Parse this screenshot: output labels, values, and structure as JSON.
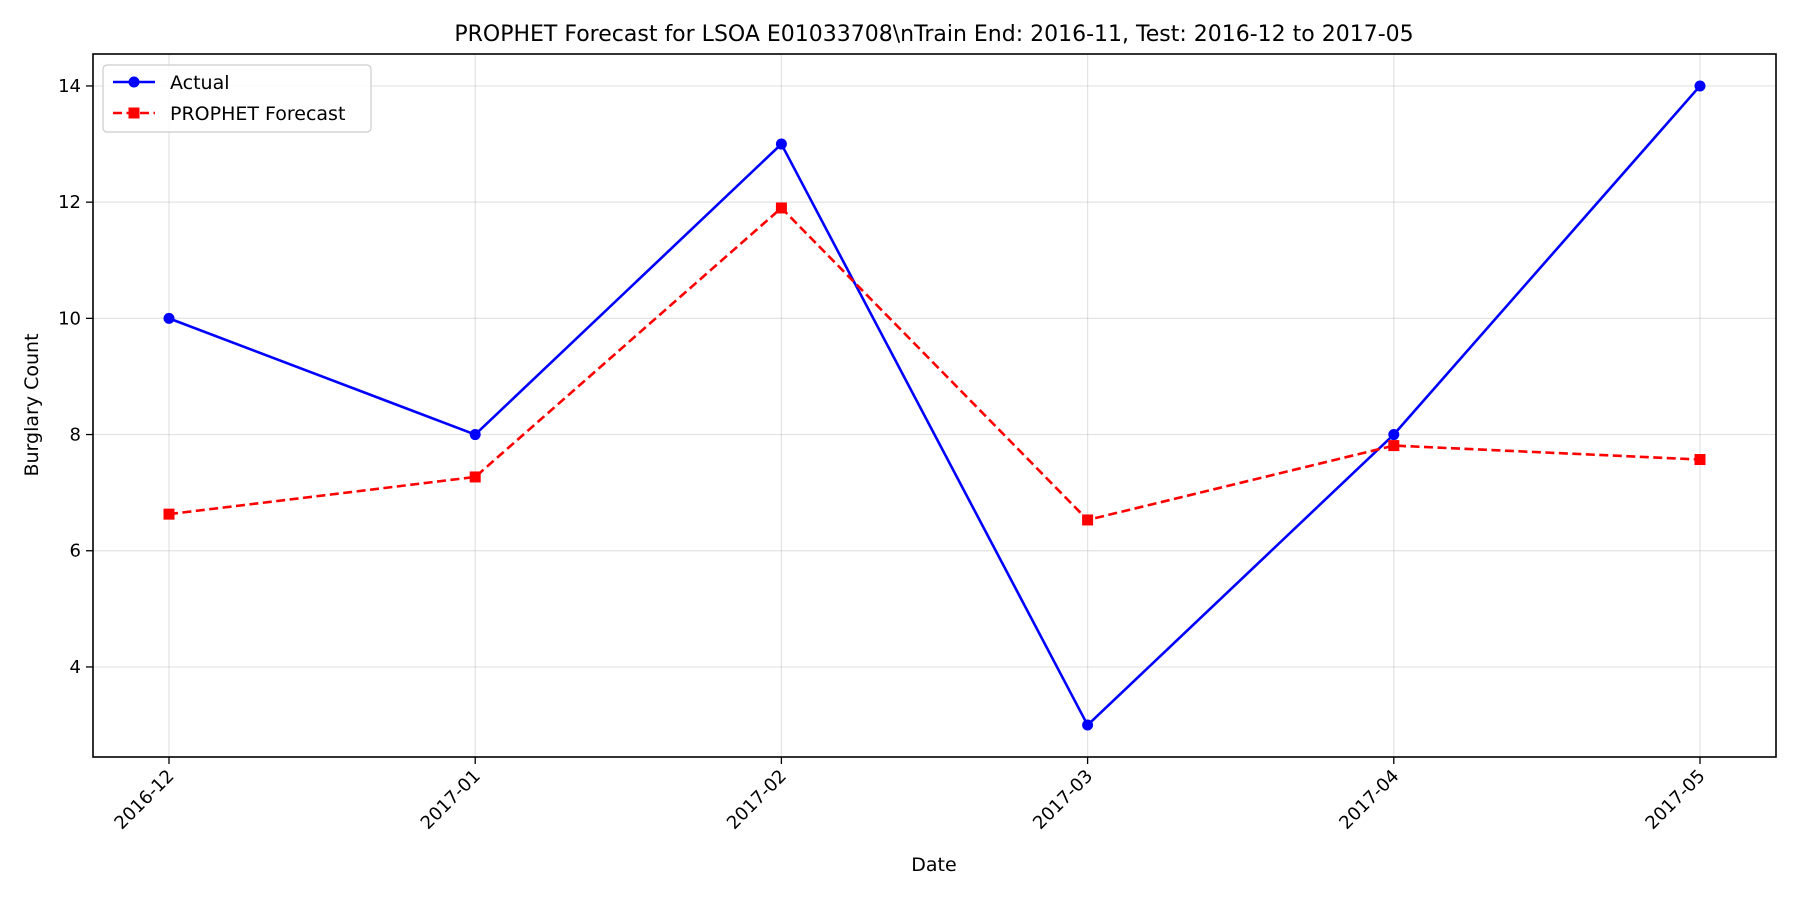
{
  "chart_data": {
    "type": "line",
    "title": "PROPHET Forecast for LSOA E01033708\\nTrain End: 2016-11, Test: 2016-12 to 2017-05",
    "xlabel": "Date",
    "ylabel": "Burglary Count",
    "x": [
      "2016-12",
      "2017-01",
      "2017-02",
      "2017-03",
      "2017-04",
      "2017-05"
    ],
    "ylim": [
      2.45,
      14.55
    ],
    "yticks": [
      4,
      6,
      8,
      10,
      12,
      14
    ],
    "grid": true,
    "legend_position": "upper-left",
    "series": [
      {
        "name": "Actual",
        "values": [
          10,
          8,
          13,
          3,
          8,
          14
        ],
        "color": "#0000ff",
        "line_style": "solid",
        "marker": "circle"
      },
      {
        "name": "PROPHET Forecast",
        "values": [
          6.63,
          7.27,
          11.9,
          6.53,
          7.81,
          7.57
        ],
        "color": "#ff0000",
        "line_style": "dashed",
        "marker": "square"
      }
    ]
  }
}
